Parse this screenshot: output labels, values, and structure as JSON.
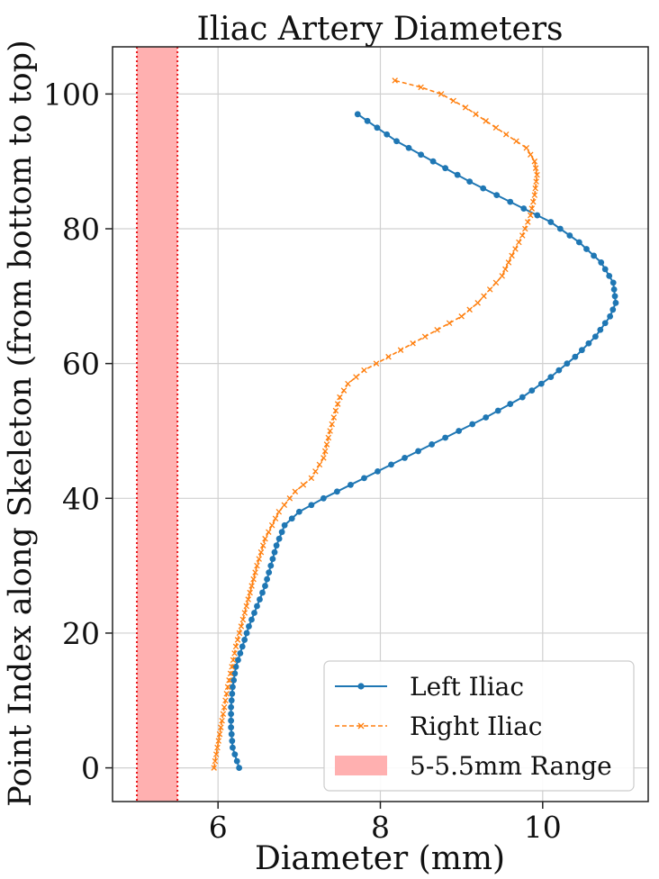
{
  "chart_data": {
    "type": "line",
    "title": "Iliac Artery Diameters",
    "xlabel": "Diameter (mm)",
    "ylabel": "Point Index along Skeleton (from bottom to top)",
    "xlim": [
      4.7,
      11.3
    ],
    "ylim": [
      -5,
      107
    ],
    "xticks": [
      6,
      8,
      10
    ],
    "yticks": [
      0,
      20,
      40,
      60,
      80,
      100
    ],
    "grid": true,
    "legend_position": "lower-right",
    "band": {
      "name": "5-5.5mm Range",
      "x_range": [
        5,
        5.5
      ],
      "color": "#ffb0b0",
      "edge_color": "#e8171a"
    },
    "series": [
      {
        "name": "Left Iliac",
        "color": "#1f77b4",
        "linestyle": "solid",
        "marker": "dot",
        "y_range": [
          0,
          97
        ],
        "key_points": [
          [
            6.26,
            0
          ],
          [
            6.18,
            3
          ],
          [
            6.16,
            6
          ],
          [
            6.16,
            9
          ],
          [
            6.18,
            12
          ],
          [
            6.22,
            15
          ],
          [
            6.3,
            18
          ],
          [
            6.38,
            21
          ],
          [
            6.48,
            24
          ],
          [
            6.58,
            27
          ],
          [
            6.65,
            30
          ],
          [
            6.72,
            33
          ],
          [
            6.82,
            36
          ],
          [
            7.0,
            38
          ],
          [
            7.3,
            40
          ],
          [
            7.8,
            43
          ],
          [
            8.3,
            46
          ],
          [
            8.8,
            49
          ],
          [
            9.3,
            52
          ],
          [
            9.75,
            55
          ],
          [
            10.1,
            58
          ],
          [
            10.4,
            61
          ],
          [
            10.65,
            64
          ],
          [
            10.83,
            67
          ],
          [
            10.9,
            69
          ],
          [
            10.87,
            72
          ],
          [
            10.72,
            75
          ],
          [
            10.45,
            78
          ],
          [
            10.1,
            81
          ],
          [
            9.6,
            84
          ],
          [
            9.1,
            87
          ],
          [
            8.65,
            90
          ],
          [
            8.2,
            93
          ],
          [
            7.72,
            97
          ]
        ]
      },
      {
        "name": "Right Iliac",
        "color": "#ff7f0e",
        "linestyle": "dashed",
        "marker": "x",
        "y_range": [
          0,
          102
        ],
        "key_points": [
          [
            5.95,
            0
          ],
          [
            6.02,
            5
          ],
          [
            6.12,
            12
          ],
          [
            6.22,
            18
          ],
          [
            6.35,
            24
          ],
          [
            6.48,
            30
          ],
          [
            6.58,
            34
          ],
          [
            6.75,
            38
          ],
          [
            6.95,
            41
          ],
          [
            7.15,
            43
          ],
          [
            7.3,
            46
          ],
          [
            7.38,
            50
          ],
          [
            7.45,
            53
          ],
          [
            7.5,
            55
          ],
          [
            7.6,
            57
          ],
          [
            7.8,
            59
          ],
          [
            8.1,
            61
          ],
          [
            8.4,
            63
          ],
          [
            8.7,
            65
          ],
          [
            9.0,
            67
          ],
          [
            9.2,
            69
          ],
          [
            9.35,
            71
          ],
          [
            9.5,
            73
          ],
          [
            9.62,
            76
          ],
          [
            9.75,
            79
          ],
          [
            9.85,
            82
          ],
          [
            9.9,
            85
          ],
          [
            9.93,
            88
          ],
          [
            9.9,
            90
          ],
          [
            9.8,
            92
          ],
          [
            9.55,
            94
          ],
          [
            9.3,
            96
          ],
          [
            9.05,
            98
          ],
          [
            8.75,
            100
          ],
          [
            8.5,
            101
          ],
          [
            8.18,
            102
          ]
        ]
      }
    ]
  }
}
